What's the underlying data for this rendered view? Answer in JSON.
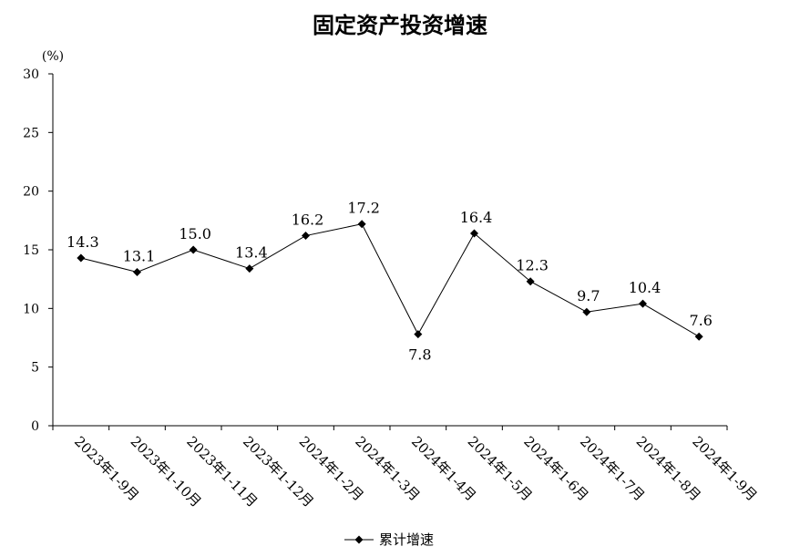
{
  "chart_data": {
    "type": "line",
    "title": "固定资产投资增速",
    "unit_label": "(%)",
    "ylim": [
      0,
      30
    ],
    "yticks": [
      0,
      5,
      10,
      15,
      20,
      25,
      30
    ],
    "categories": [
      "2023年1-9月",
      "2023年1-10月",
      "2023年1-11月",
      "2023年1-12月",
      "2024年1-2月",
      "2024年1-3月",
      "2024年1-4月",
      "2024年1-5月",
      "2024年1-6月",
      "2024年1-7月",
      "2024年1-8月",
      "2024年1-9月"
    ],
    "series": [
      {
        "name": "累计增速",
        "values": [
          14.3,
          13.1,
          15.0,
          13.4,
          16.2,
          17.2,
          7.8,
          16.4,
          12.3,
          9.7,
          10.4,
          7.6
        ],
        "labels": [
          "14.3",
          "13.1",
          "15.0",
          "13.4",
          "16.2",
          "17.2",
          "7.8",
          "16.4",
          "12.3",
          "9.7",
          "10.4",
          "7.6"
        ]
      }
    ],
    "legend_position": "bottom-center",
    "grid": false,
    "line_color": "#000000",
    "marker": "diamond"
  }
}
